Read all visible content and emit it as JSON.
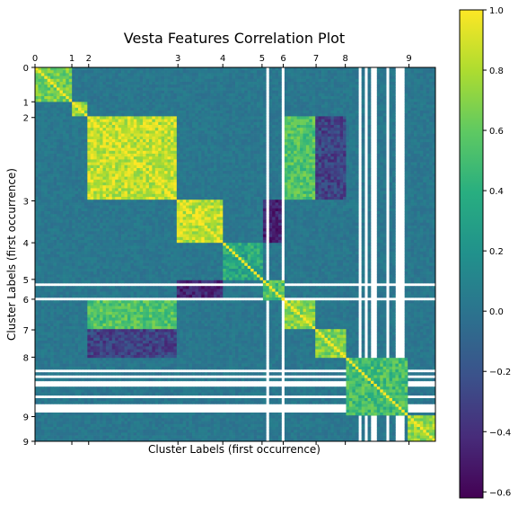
{
  "chart_data": {
    "type": "heatmap",
    "title": "Vesta Features Correlation Plot",
    "xlabel": "Cluster Labels (first occurrence)",
    "ylabel": "Cluster Labels (first occurrence)",
    "cluster_ticks": [
      "0",
      "1",
      "2",
      "3",
      "4",
      "5",
      "6",
      "7",
      "8",
      "9"
    ],
    "cluster_start_fraction": [
      0.0,
      0.092,
      0.134,
      0.357,
      0.469,
      0.567,
      0.62,
      0.702,
      0.775,
      0.934
    ],
    "y_axis_extra_ticks": [
      "9"
    ],
    "colorbar": {
      "min": -0.62,
      "max": 1.0,
      "ticks": [
        "1.0",
        "0.8",
        "0.6",
        "0.4",
        "0.2",
        "0.0",
        "−0.2",
        "−0.4",
        "−0.6"
      ],
      "tick_values": [
        1.0,
        0.8,
        0.6,
        0.4,
        0.2,
        0.0,
        -0.2,
        -0.4,
        -0.6
      ],
      "colormap": "viridis"
    },
    "block_pattern": {
      "diagonal": 1.0,
      "within_cluster_mean": [
        0.65,
        0.75,
        0.85,
        0.85,
        0.35,
        0.55,
        0.7,
        0.7,
        0.5,
        0.75
      ],
      "between_cluster_mean": 0.02,
      "strong_off_diagonal": [
        {
          "clusters": [
            "2",
            "6"
          ],
          "value": 0.55
        },
        {
          "clusters": [
            "3",
            "5"
          ],
          "value": -0.45
        },
        {
          "clusters": [
            "2",
            "7"
          ],
          "value": -0.3
        }
      ],
      "missing_regions": [
        "5",
        "8"
      ]
    },
    "grid": false
  }
}
